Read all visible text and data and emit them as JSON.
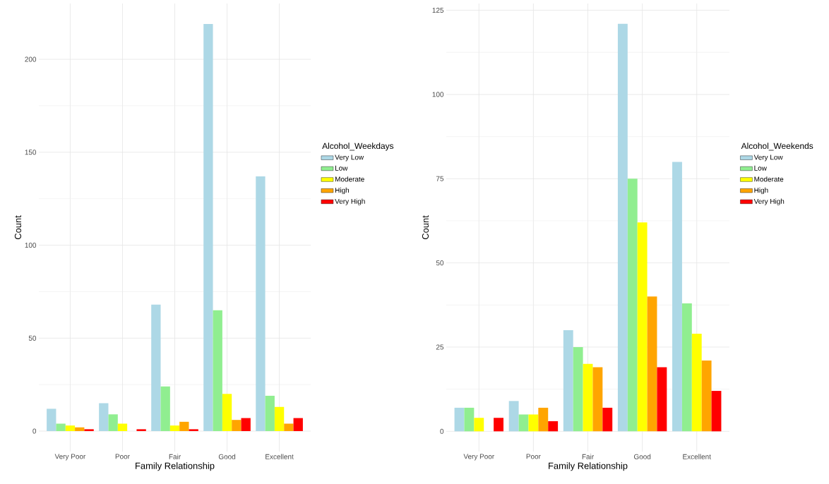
{
  "chart_data": [
    {
      "type": "bar",
      "xlabel": "Family Relationship",
      "ylabel": "Count",
      "legend_title": "Alcohol_Weekdays",
      "legend": "right",
      "grid": true,
      "categories": [
        "Very Poor",
        "Poor",
        "Fair",
        "Good",
        "Excellent"
      ],
      "ylim": [
        -11,
        230
      ],
      "yticks": [
        0,
        50,
        100,
        150,
        200
      ],
      "series": [
        {
          "name": "Very Low",
          "color": "#add8e6",
          "values": [
            12,
            15,
            68,
            219,
            137
          ]
        },
        {
          "name": "Low",
          "color": "#90ee90",
          "values": [
            4,
            9,
            24,
            65,
            19
          ]
        },
        {
          "name": "Moderate",
          "color": "#ffff00",
          "values": [
            3,
            4,
            3,
            20,
            13
          ]
        },
        {
          "name": "High",
          "color": "#ffa500",
          "values": [
            2,
            0,
            5,
            6,
            4
          ]
        },
        {
          "name": "Very High",
          "color": "#ff0000",
          "values": [
            1,
            1,
            1,
            7,
            7
          ]
        }
      ]
    },
    {
      "type": "bar",
      "xlabel": "Family Relationship",
      "ylabel": "Count",
      "legend_title": "Alcohol_Weekends",
      "legend": "right",
      "grid": true,
      "categories": [
        "Very Poor",
        "Poor",
        "Fair",
        "Good",
        "Excellent"
      ],
      "ylim": [
        -6,
        127
      ],
      "yticks": [
        0,
        25,
        50,
        75,
        100,
        125
      ],
      "series": [
        {
          "name": "Very Low",
          "color": "#add8e6",
          "values": [
            7,
            9,
            30,
            121,
            80
          ]
        },
        {
          "name": "Low",
          "color": "#90ee90",
          "values": [
            7,
            5,
            25,
            75,
            38
          ]
        },
        {
          "name": "Moderate",
          "color": "#ffff00",
          "values": [
            4,
            5,
            20,
            62,
            29
          ]
        },
        {
          "name": "High",
          "color": "#ffa500",
          "values": [
            0,
            7,
            19,
            40,
            21
          ]
        },
        {
          "name": "Very High",
          "color": "#ff0000",
          "values": [
            4,
            3,
            7,
            19,
            12
          ]
        }
      ]
    }
  ]
}
